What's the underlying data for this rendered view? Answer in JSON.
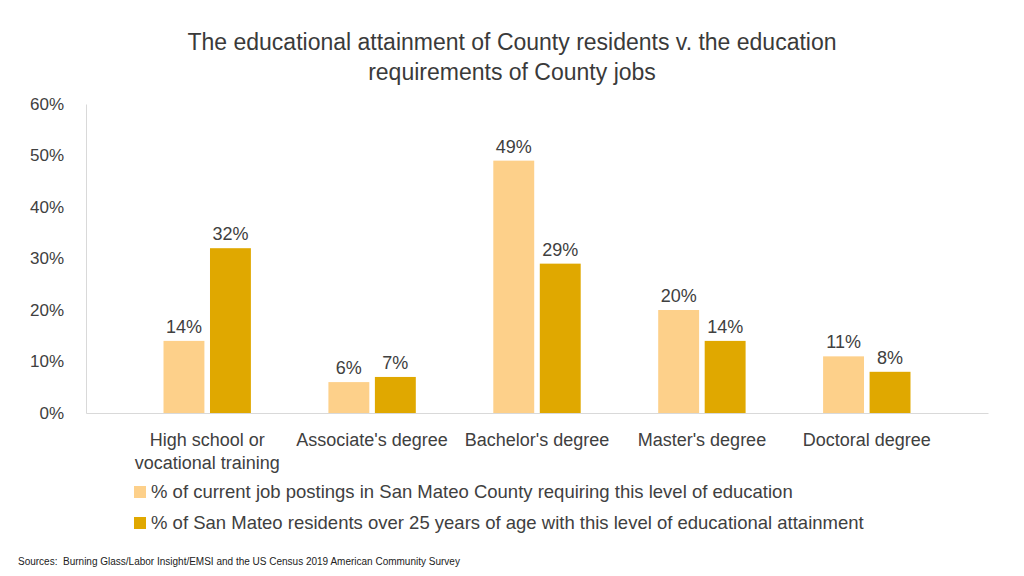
{
  "chart_data": {
    "type": "bar",
    "title": "The educational attainment of County residents v. the education requirements of County jobs",
    "categories": [
      "High school or vocational training",
      "Associate's degree",
      "Bachelor's degree",
      "Master's degree",
      "Doctoral degree"
    ],
    "series": [
      {
        "name": "% of current job postings in San Mateo County requiring this level of education",
        "color": "#fdd08a",
        "values": [
          14,
          6,
          49,
          20,
          11
        ],
        "value_labels": [
          "14%",
          "6%",
          "49%",
          "20%",
          "11%"
        ]
      },
      {
        "name": "% of San Mateo residents over 25 years of age with this level of educational attainment",
        "color": "#e0a800",
        "values": [
          32,
          7,
          29,
          14,
          8
        ],
        "value_labels": [
          "32%",
          "7%",
          "29%",
          "14%",
          "8%"
        ]
      }
    ],
    "ylim": [
      0,
      60
    ],
    "yticks": [
      {
        "value": 0,
        "label": "0%"
      },
      {
        "value": 10,
        "label": "10%"
      },
      {
        "value": 20,
        "label": "20%"
      },
      {
        "value": 30,
        "label": "30%"
      },
      {
        "value": 40,
        "label": "40%"
      },
      {
        "value": 50,
        "label": "50%"
      },
      {
        "value": 60,
        "label": "60%"
      }
    ],
    "grid": false,
    "data_labels": true,
    "legend": "bottom",
    "source": "Sources:  Burning Glass/Labor Insight/EMSI and the US Census 2019 American Community Survey"
  }
}
